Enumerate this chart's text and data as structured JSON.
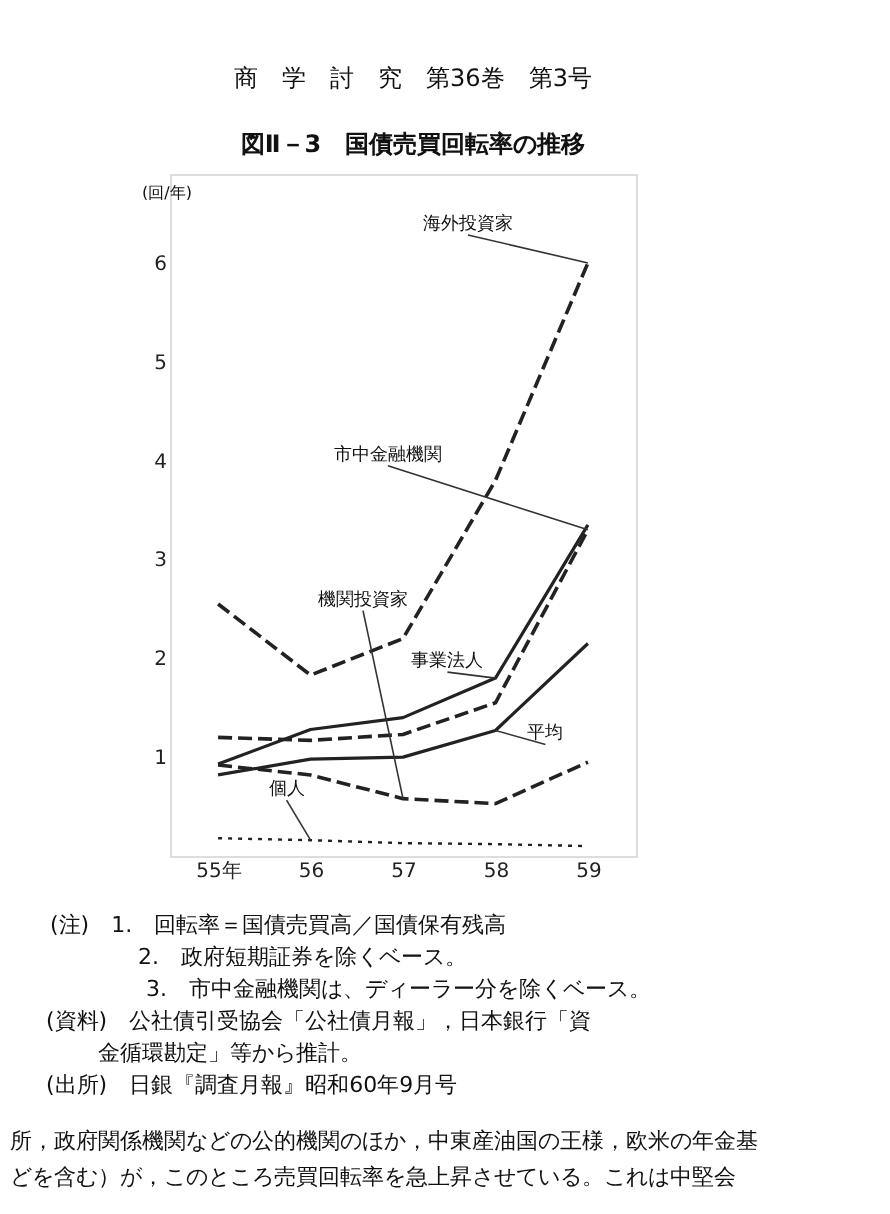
{
  "chart_data": {
    "type": "line",
    "title": "図Ⅱ－3　国債売買回転率の推移",
    "ylabel": "(回/年)",
    "categories": [
      "55年",
      "56",
      "57",
      "58",
      "59"
    ],
    "ylim": [
      0,
      6.9
    ],
    "yticks": [
      1,
      2,
      3,
      4,
      5,
      6
    ],
    "grid": false,
    "series": [
      {
        "name": "海外投資家",
        "color": "#222222",
        "line_style": "dashed",
        "values": [
          2.55,
          1.83,
          2.2,
          3.8,
          6.0
        ]
      },
      {
        "name": "市中金融機関",
        "color": "#222222",
        "line_style": "dashed",
        "values": [
          1.2,
          1.17,
          1.23,
          1.55,
          3.3
        ]
      },
      {
        "name": "事業法人",
        "color": "#222222",
        "line_style": "solid",
        "values": [
          0.93,
          1.28,
          1.4,
          1.8,
          3.35
        ]
      },
      {
        "name": "機関投資家",
        "color": "#222222",
        "line_style": "dashed",
        "values": [
          0.92,
          0.82,
          0.58,
          0.53,
          0.95
        ]
      },
      {
        "name": "平均",
        "color": "#222222",
        "line_style": "solid",
        "values": [
          0.82,
          0.98,
          1.0,
          1.27,
          2.15
        ]
      },
      {
        "name": "個人",
        "color": "#222222",
        "line_style": "dotted",
        "values": [
          0.18,
          0.16,
          0.13,
          0.12,
          0.1
        ]
      }
    ],
    "annotations": [
      "商　学　討　究　第36巻　第3号",
      "(注)　1.　回転率＝国債売買高／国債保有残高",
      "2.　政府短期証券を除くベース。",
      "3.　市中金融機関は、ディーラー分を除くベース。",
      "(資料)　公社債引受協会「公社債月報」，日本銀行「資",
      "金循環勘定」等から推計。",
      "(出所)　日銀『調査月報』昭和60年9月号",
      "所，政府関係機関などの公的機関のほか，中東産油国の王様，欧米の年金基",
      "どを含む）が，このところ売買回転率を急上昇させている。これは中堅会"
    ]
  }
}
